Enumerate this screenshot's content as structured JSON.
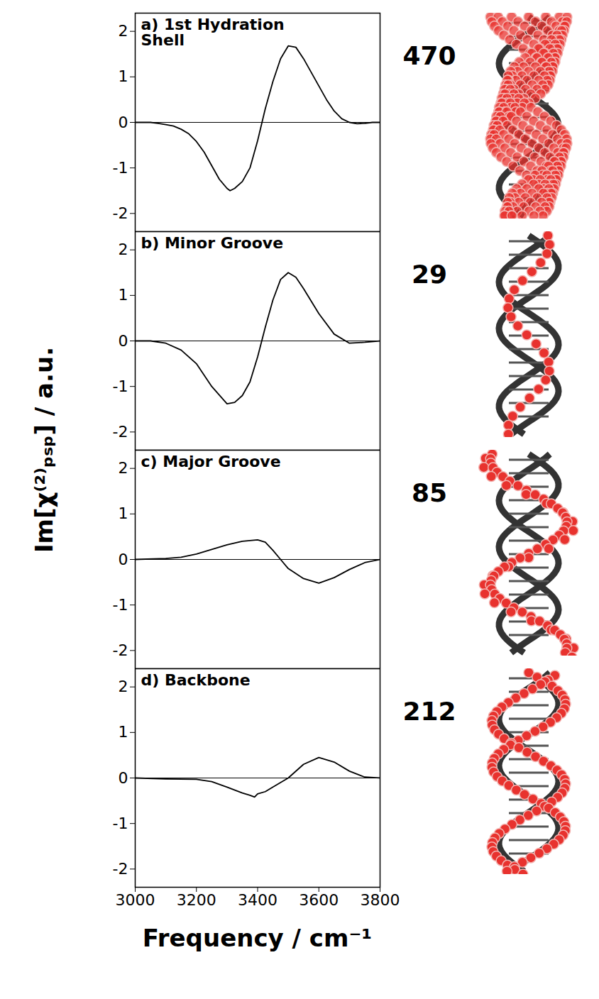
{
  "y_label": "Im[χ⁽²⁾ₚₛₚ] / a.u.",
  "x_label": "Frequency / cm⁻¹",
  "chart_data": [
    {
      "type": "line",
      "title": "a) 1st Hydration Shell",
      "annotation": "470",
      "color": "#000000",
      "x": [
        3000,
        3025,
        3050,
        3075,
        3100,
        3125,
        3150,
        3175,
        3200,
        3225,
        3250,
        3275,
        3300,
        3310,
        3325,
        3350,
        3375,
        3400,
        3425,
        3450,
        3475,
        3500,
        3525,
        3550,
        3575,
        3600,
        3625,
        3650,
        3675,
        3700,
        3725,
        3750,
        3775,
        3800
      ],
      "values": [
        0,
        0,
        0,
        -0.02,
        -0.05,
        -0.08,
        -0.15,
        -0.25,
        -0.42,
        -0.65,
        -0.95,
        -1.25,
        -1.45,
        -1.5,
        -1.45,
        -1.3,
        -1.0,
        -0.4,
        0.3,
        0.9,
        1.4,
        1.68,
        1.65,
        1.4,
        1.1,
        0.8,
        0.5,
        0.25,
        0.08,
        0.0,
        -0.03,
        -0.02,
        0,
        0
      ],
      "xlim": [
        3000,
        3800
      ],
      "xticks": [
        3000,
        3200,
        3400,
        3600,
        3800
      ],
      "ylim": [
        -2.4,
        2.4
      ],
      "yticks": [
        -2,
        -1,
        0,
        1,
        2
      ],
      "tick_labels": "y"
    },
    {
      "type": "line",
      "title": "b) Minor Groove",
      "annotation": "29",
      "color": "#000000",
      "x": [
        3000,
        3050,
        3100,
        3150,
        3200,
        3250,
        3300,
        3325,
        3350,
        3375,
        3400,
        3425,
        3450,
        3475,
        3500,
        3525,
        3550,
        3600,
        3650,
        3700,
        3750,
        3800
      ],
      "values": [
        0,
        0,
        -0.05,
        -0.2,
        -0.5,
        -1.0,
        -1.38,
        -1.35,
        -1.2,
        -0.9,
        -0.35,
        0.3,
        0.9,
        1.35,
        1.5,
        1.4,
        1.15,
        0.6,
        0.15,
        -0.05,
        -0.03,
        0
      ],
      "xlim": [
        3000,
        3800
      ],
      "xticks": [
        3000,
        3200,
        3400,
        3600,
        3800
      ],
      "ylim": [
        -2.4,
        2.4
      ],
      "yticks": [
        -2,
        -1,
        0,
        1,
        2
      ],
      "tick_labels": "y"
    },
    {
      "type": "line",
      "title": "c) Major Groove",
      "annotation": "85",
      "color": "#000000",
      "x": [
        3000,
        3100,
        3150,
        3200,
        3250,
        3300,
        3350,
        3400,
        3425,
        3450,
        3475,
        3500,
        3550,
        3600,
        3650,
        3700,
        3750,
        3800
      ],
      "values": [
        0,
        0.02,
        0.05,
        0.12,
        0.22,
        0.32,
        0.4,
        0.43,
        0.38,
        0.2,
        0.0,
        -0.2,
        -0.42,
        -0.52,
        -0.4,
        -0.22,
        -0.07,
        0
      ],
      "xlim": [
        3000,
        3800
      ],
      "xticks": [
        3000,
        3200,
        3400,
        3600,
        3800
      ],
      "ylim": [
        -2.4,
        2.4
      ],
      "yticks": [
        -2,
        -1,
        0,
        1,
        2
      ],
      "tick_labels": "y"
    },
    {
      "type": "line",
      "title": "d) Backbone",
      "annotation": "212",
      "color": "#000000",
      "x": [
        3000,
        3100,
        3200,
        3250,
        3300,
        3350,
        3375,
        3390,
        3400,
        3425,
        3450,
        3500,
        3550,
        3600,
        3650,
        3700,
        3750,
        3800
      ],
      "values": [
        0,
        -0.02,
        -0.03,
        -0.08,
        -0.2,
        -0.33,
        -0.38,
        -0.42,
        -0.35,
        -0.3,
        -0.2,
        0.0,
        0.3,
        0.45,
        0.35,
        0.15,
        0.02,
        0
      ],
      "xlim": [
        3000,
        3800
      ],
      "xticks": [
        3000,
        3200,
        3400,
        3600,
        3800
      ],
      "ylim": [
        -2.4,
        2.4
      ],
      "yticks": [
        -2,
        -1,
        0,
        1,
        2
      ]
    }
  ]
}
